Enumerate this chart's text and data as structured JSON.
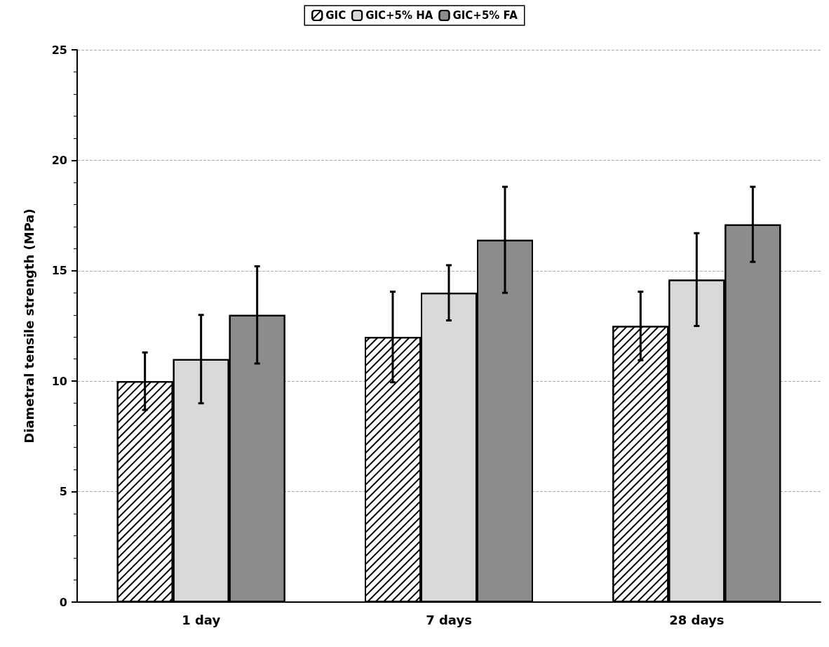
{
  "chart_data": {
    "type": "bar",
    "ylabel": "Diametral tensile strength (MPa)",
    "categories": [
      "1 day",
      "7 days",
      "28 days"
    ],
    "series": [
      {
        "name": "GIC",
        "color": "#ffffff",
        "values": [
          10,
          12,
          12.5
        ],
        "errors": [
          1.3,
          2.05,
          1.55
        ]
      },
      {
        "name": "GIC+5% HA",
        "color": "#d9d9d9",
        "values": [
          11,
          14,
          14.6
        ],
        "errors": [
          2,
          1.25,
          2.1
        ]
      },
      {
        "name": "GIC+5% FA",
        "color": "#8c8c8c",
        "values": [
          13,
          16.4,
          17.1
        ],
        "errors": [
          2.2,
          2.4,
          1.7
        ]
      }
    ],
    "ylim": [
      0,
      25
    ],
    "yticks": [
      0,
      5,
      10,
      15,
      20,
      25
    ],
    "grid": "y",
    "legend": "top"
  }
}
